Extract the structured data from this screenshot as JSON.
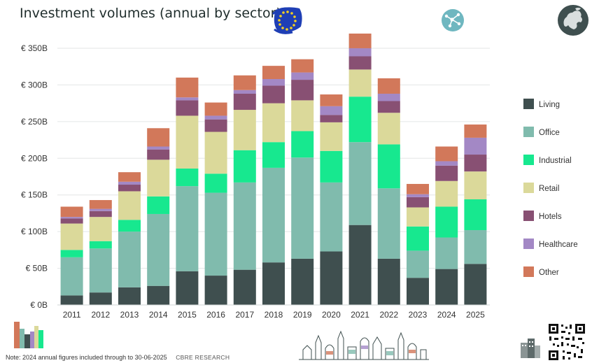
{
  "title": "Investment volumes (annual by sector)",
  "footer": {
    "note": "Note: 2024 annual figures included through to 30-06-2025",
    "source": "CBRE RESEARCH"
  },
  "icons": [
    "eu-flag-icon",
    "network-badge-icon",
    "europe-map-icon",
    "city-buildings-icon",
    "skyline-illustration",
    "qr-code-icon",
    "office-buildings-icon"
  ],
  "colors": {
    "Living": "#3f4f4f",
    "Office": "#80bbad",
    "Industrial": "#17e88f",
    "Retail": "#dbd99a",
    "Hotels": "#885073",
    "Healthcare": "#a388c5",
    "Other": "#d2785a"
  },
  "chart_data": {
    "type": "bar",
    "stacked": true,
    "categories": [
      "2011",
      "2012",
      "2013",
      "2014",
      "2015",
      "2016",
      "2017",
      "2018",
      "2019",
      "2020",
      "2021",
      "2022",
      "2023",
      "2024",
      "2025"
    ],
    "ylim": [
      0,
      370
    ],
    "yticks": [
      0,
      50,
      100,
      150,
      200,
      250,
      300,
      350
    ],
    "ytick_labels": [
      "€ 0B",
      "€ 50B",
      "€ 100B",
      "€ 150B",
      "€ 200B",
      "€ 250B",
      "€ 300B",
      "€ 350B"
    ],
    "grid": true,
    "legend_position": "right",
    "series": [
      {
        "name": "Living",
        "values": [
          13,
          17,
          24,
          26,
          46,
          40,
          48,
          58,
          63,
          73,
          109,
          63,
          37,
          49,
          56
        ]
      },
      {
        "name": "Office",
        "values": [
          52,
          60,
          76,
          98,
          116,
          113,
          119,
          129,
          138,
          94,
          113,
          96,
          37,
          43,
          46
        ]
      },
      {
        "name": "Industrial",
        "values": [
          10,
          10,
          16,
          24,
          24,
          26,
          44,
          35,
          36,
          43,
          62,
          60,
          33,
          42,
          42
        ]
      },
      {
        "name": "Retail",
        "values": [
          36,
          33,
          39,
          50,
          72,
          57,
          55,
          53,
          42,
          39,
          37,
          43,
          26,
          35,
          38
        ]
      },
      {
        "name": "Hotels",
        "values": [
          7,
          8,
          9,
          14,
          21,
          17,
          22,
          24,
          28,
          10,
          18,
          16,
          14,
          21,
          23
        ]
      },
      {
        "name": "Healthcare",
        "values": [
          2,
          3,
          4,
          4,
          4,
          5,
          5,
          9,
          10,
          12,
          11,
          10,
          4,
          6,
          23
        ]
      },
      {
        "name": "Other",
        "values": [
          14,
          12,
          13,
          25,
          27,
          18,
          20,
          18,
          18,
          16,
          20,
          21,
          14,
          20,
          18
        ]
      }
    ]
  }
}
